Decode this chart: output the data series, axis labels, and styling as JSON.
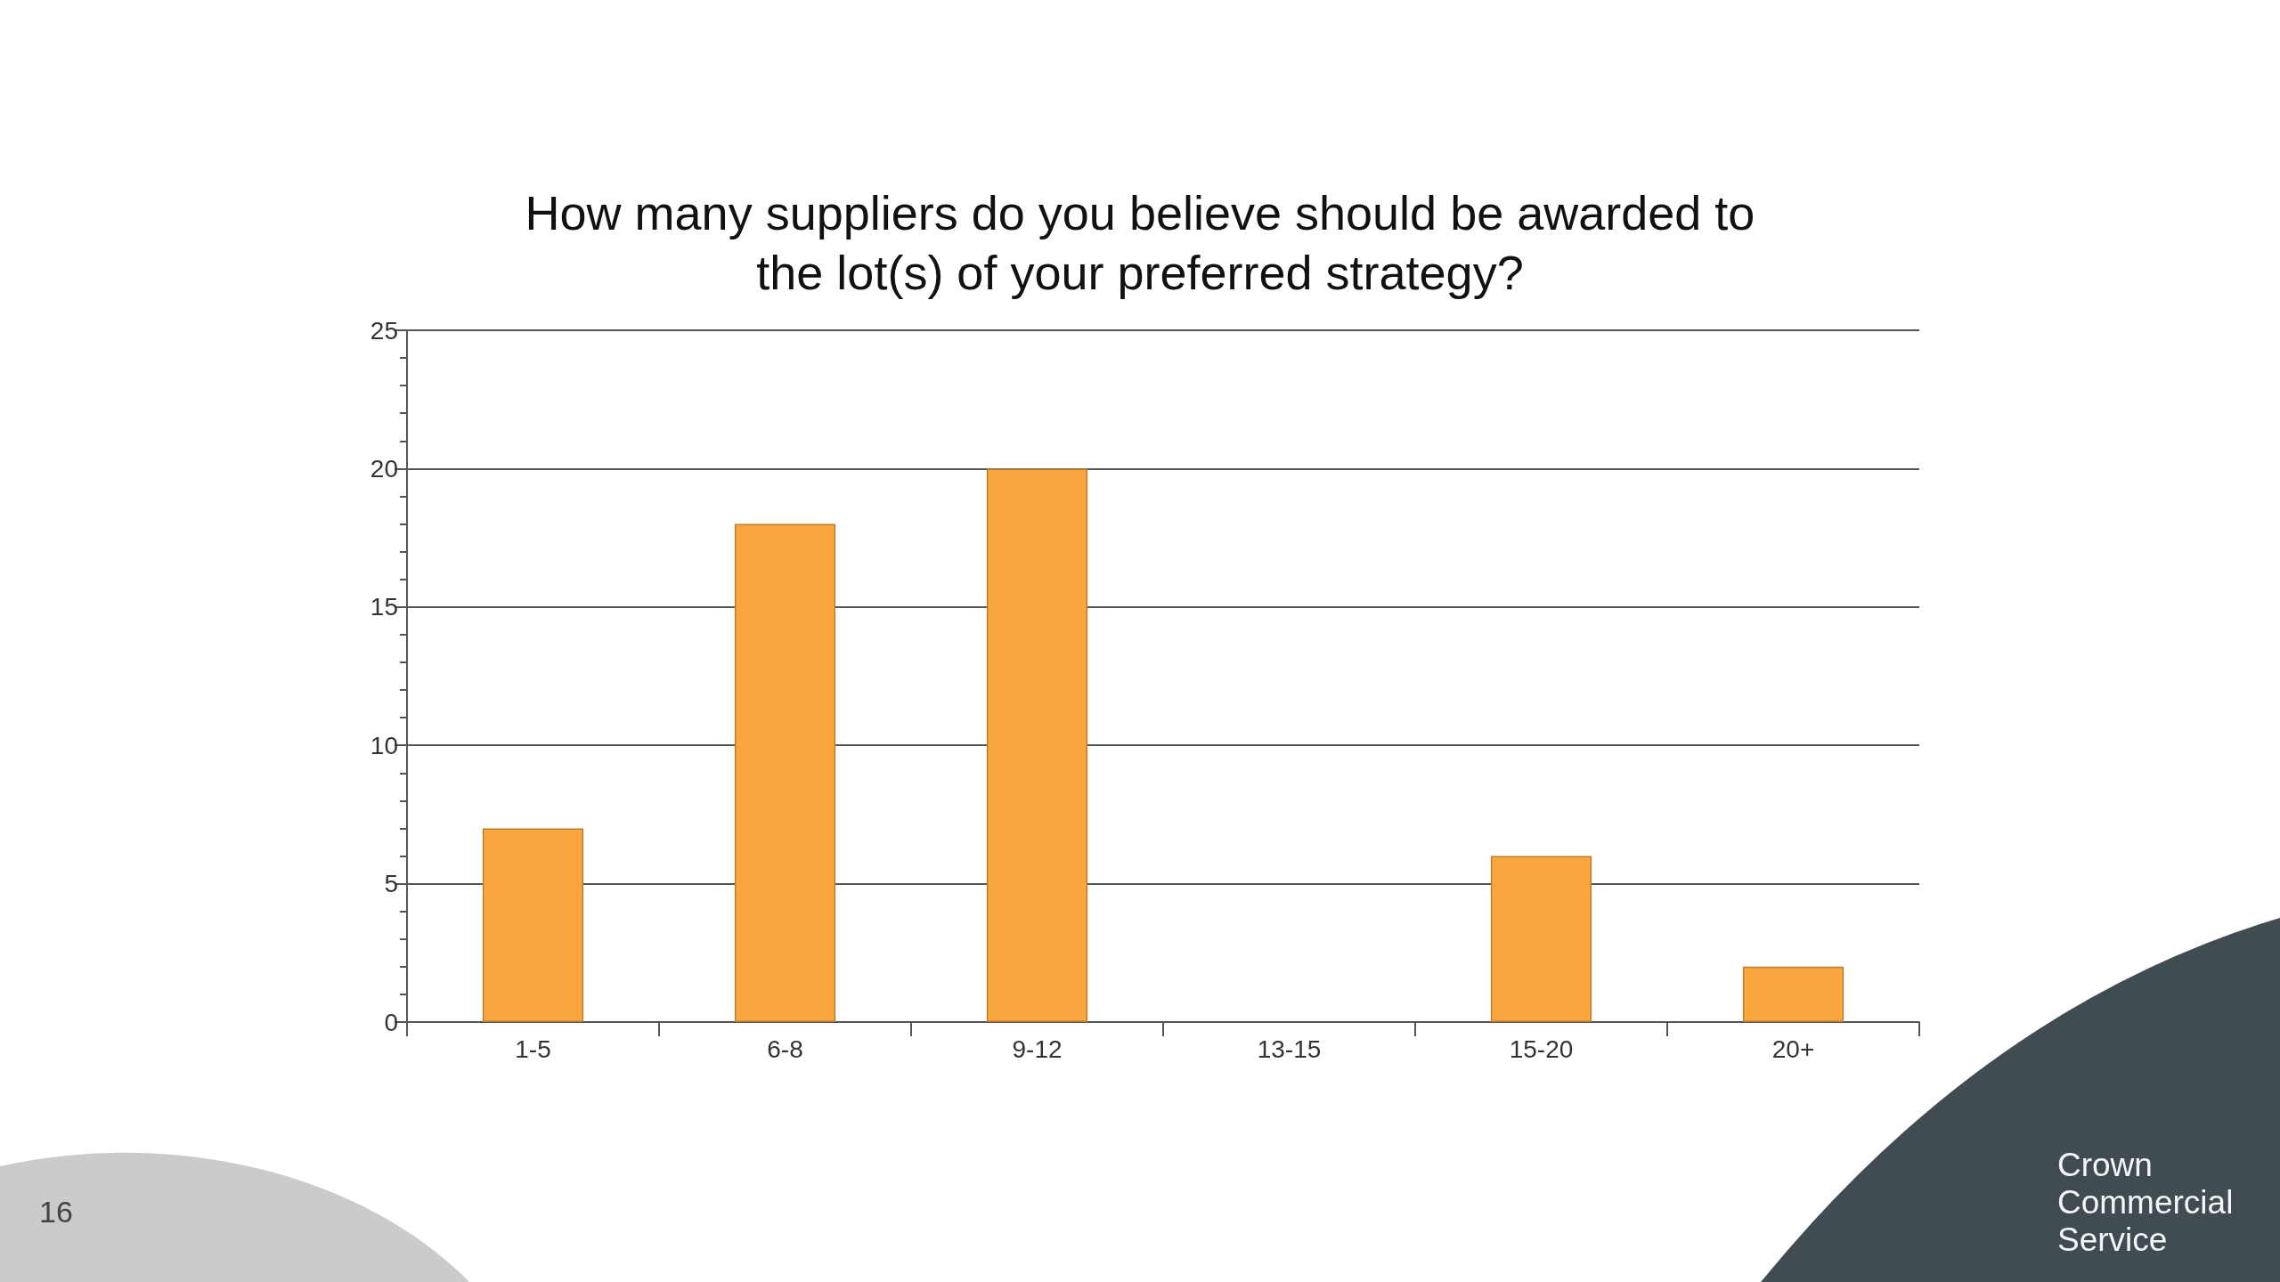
{
  "chart_data": {
    "type": "bar",
    "title": "How many suppliers do you believe should be awarded to the lot(s) of your preferred strategy?",
    "categories": [
      "1-5",
      "6-8",
      "9-12",
      "13-15",
      "15-20",
      "20+"
    ],
    "values": [
      7,
      18,
      20,
      0,
      6,
      2
    ],
    "color": "#faa73f",
    "ylim": [
      0,
      25
    ],
    "yticks": [
      0,
      5,
      10,
      15,
      20,
      25
    ],
    "grid": "y",
    "annotations": [
      "16",
      "Crown Commercial Service"
    ]
  }
}
